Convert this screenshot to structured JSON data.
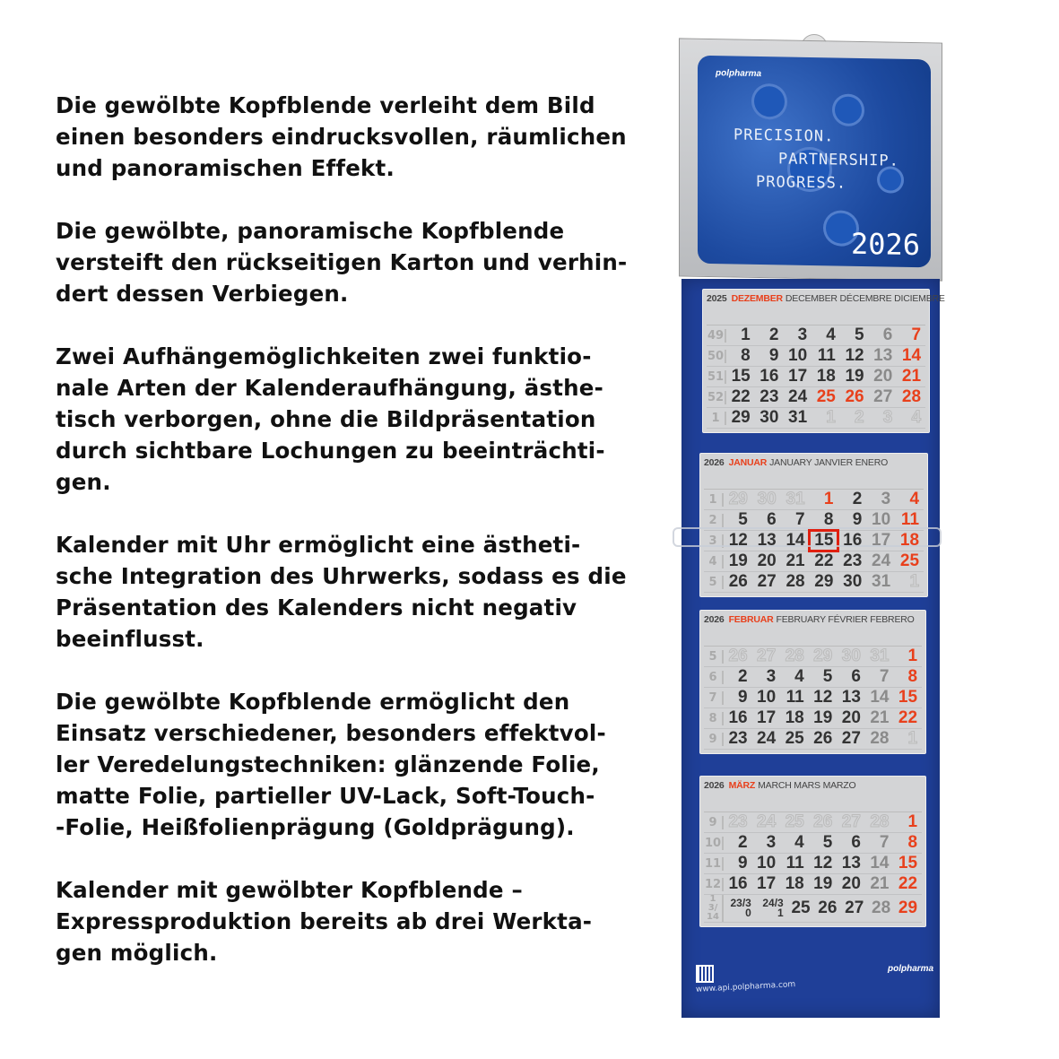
{
  "text": {
    "paragraphs": [
      "Die gewölbte Kopfblende verleiht dem Bild\neinen besonders eindrucksvollen, räumlichen\nund panoramischen Effekt.",
      "Die gewölbte, panoramische Kopfblende\nversteift den rückseitigen Karton und verhin-\ndert dessen Verbiegen.",
      "Zwei Aufhängemöglichkeiten  zwei funktio-\nnale Arten der Kalenderaufhängung, ästhe-\ntisch verborgen, ohne die Bildpräsentation\ndurch sichtbare Lochungen zu beeinträchti-\ngen.",
      "Kalender mit Uhr  ermöglicht eine ästheti-\nsche Integration des Uhrwerks, sodass es die\nPräsentation des Kalenders nicht negativ\nbeeinflusst.",
      "Die gewölbte Kopfblende ermöglicht den\nEinsatz verschiedener, besonders effektvol-\nler Veredelungstechniken: glänzende Folie,\nmatte Folie, partieller UV-Lack, Soft-Touch-\n-Folie, Heißfolienprägung (Goldprägung).",
      "Kalender mit gewölbter Kopfblende –\nExpressproduktion bereits ab drei Werkta-\ngen möglich."
    ]
  },
  "calendar": {
    "header": {
      "logo": "polpharma",
      "slogan": [
        "PRECISION.",
        "PARTNERSHIP.",
        "PROGRESS."
      ],
      "year": "2026"
    },
    "colors": {
      "accent": "#e8401c",
      "panel": "#1f3f98"
    },
    "months": [
      {
        "year": "2025",
        "name_de": "DEZEMBER",
        "names": "DECEMBER DÉCEMBRE DICIEMBRE",
        "rows": [
          [
            "49",
            [
              [
                "1",
                "w"
              ],
              [
                "2",
                "w"
              ],
              [
                "3",
                "w"
              ],
              [
                "4",
                "w"
              ],
              [
                "5",
                "w"
              ],
              [
                "6",
                "s"
              ],
              [
                "7",
                "h"
              ]
            ]
          ],
          [
            "50",
            [
              [
                "8",
                "w"
              ],
              [
                "9",
                "w"
              ],
              [
                "10",
                "w"
              ],
              [
                "11",
                "w"
              ],
              [
                "12",
                "w"
              ],
              [
                "13",
                "s"
              ],
              [
                "14",
                "h"
              ]
            ]
          ],
          [
            "51",
            [
              [
                "15",
                "w"
              ],
              [
                "16",
                "w"
              ],
              [
                "17",
                "w"
              ],
              [
                "18",
                "w"
              ],
              [
                "19",
                "w"
              ],
              [
                "20",
                "s"
              ],
              [
                "21",
                "h"
              ]
            ]
          ],
          [
            "52",
            [
              [
                "22",
                "w"
              ],
              [
                "23",
                "w"
              ],
              [
                "24",
                "w"
              ],
              [
                "25",
                "h"
              ],
              [
                "26",
                "h"
              ],
              [
                "27",
                "s"
              ],
              [
                "28",
                "h"
              ]
            ]
          ],
          [
            "1",
            [
              [
                "29",
                "w"
              ],
              [
                "30",
                "w"
              ],
              [
                "31",
                "w"
              ],
              [
                "1",
                "o"
              ],
              [
                "2",
                "o"
              ],
              [
                "3",
                "o"
              ],
              [
                "4",
                "o"
              ]
            ]
          ]
        ]
      },
      {
        "year": "2026",
        "name_de": "JANUAR",
        "names": "JANUARY JANVIER ENERO",
        "rows": [
          [
            "1",
            [
              [
                "29",
                "o"
              ],
              [
                "30",
                "o"
              ],
              [
                "31",
                "o"
              ],
              [
                "1",
                "h"
              ],
              [
                "2",
                "w"
              ],
              [
                "3",
                "s"
              ],
              [
                "4",
                "h"
              ]
            ]
          ],
          [
            "2",
            [
              [
                "5",
                "w"
              ],
              [
                "6",
                "w"
              ],
              [
                "7",
                "w"
              ],
              [
                "8",
                "w"
              ],
              [
                "9",
                "w"
              ],
              [
                "10",
                "s"
              ],
              [
                "11",
                "h"
              ]
            ]
          ],
          [
            "3",
            [
              [
                "12",
                "w"
              ],
              [
                "13",
                "w"
              ],
              [
                "14",
                "w"
              ],
              [
                "15",
                "hl"
              ],
              [
                "16",
                "w"
              ],
              [
                "17",
                "s"
              ],
              [
                "18",
                "h"
              ]
            ]
          ],
          [
            "4",
            [
              [
                "19",
                "w"
              ],
              [
                "20",
                "w"
              ],
              [
                "21",
                "w"
              ],
              [
                "22",
                "w"
              ],
              [
                "23",
                "w"
              ],
              [
                "24",
                "s"
              ],
              [
                "25",
                "h"
              ]
            ]
          ],
          [
            "5",
            [
              [
                "26",
                "w"
              ],
              [
                "27",
                "w"
              ],
              [
                "28",
                "w"
              ],
              [
                "29",
                "w"
              ],
              [
                "30",
                "w"
              ],
              [
                "31",
                "s"
              ],
              [
                "1",
                "o"
              ]
            ]
          ]
        ]
      },
      {
        "year": "2026",
        "name_de": "FEBRUAR",
        "names": "FEBRUARY FÉVRIER FEBRERO",
        "rows": [
          [
            "5",
            [
              [
                "26",
                "o"
              ],
              [
                "27",
                "o"
              ],
              [
                "28",
                "o"
              ],
              [
                "29",
                "o"
              ],
              [
                "30",
                "o"
              ],
              [
                "31",
                "o"
              ],
              [
                "1",
                "h"
              ]
            ]
          ],
          [
            "6",
            [
              [
                "2",
                "w"
              ],
              [
                "3",
                "w"
              ],
              [
                "4",
                "w"
              ],
              [
                "5",
                "w"
              ],
              [
                "6",
                "w"
              ],
              [
                "7",
                "s"
              ],
              [
                "8",
                "h"
              ]
            ]
          ],
          [
            "7",
            [
              [
                "9",
                "w"
              ],
              [
                "10",
                "w"
              ],
              [
                "11",
                "w"
              ],
              [
                "12",
                "w"
              ],
              [
                "13",
                "w"
              ],
              [
                "14",
                "s"
              ],
              [
                "15",
                "h"
              ]
            ]
          ],
          [
            "8",
            [
              [
                "16",
                "w"
              ],
              [
                "17",
                "w"
              ],
              [
                "18",
                "w"
              ],
              [
                "19",
                "w"
              ],
              [
                "20",
                "w"
              ],
              [
                "21",
                "s"
              ],
              [
                "22",
                "h"
              ]
            ]
          ],
          [
            "9",
            [
              [
                "23",
                "w"
              ],
              [
                "24",
                "w"
              ],
              [
                "25",
                "w"
              ],
              [
                "26",
                "w"
              ],
              [
                "27",
                "w"
              ],
              [
                "28",
                "s"
              ],
              [
                "1",
                "o"
              ]
            ]
          ]
        ]
      },
      {
        "year": "2026",
        "name_de": "MÄRZ",
        "names": "MARCH MARS MARZO",
        "rows": [
          [
            "9",
            [
              [
                "23",
                "o"
              ],
              [
                "24",
                "o"
              ],
              [
                "25",
                "o"
              ],
              [
                "26",
                "o"
              ],
              [
                "27",
                "o"
              ],
              [
                "28",
                "o"
              ],
              [
                "1",
                "h"
              ]
            ]
          ],
          [
            "10",
            [
              [
                "2",
                "w"
              ],
              [
                "3",
                "w"
              ],
              [
                "4",
                "w"
              ],
              [
                "5",
                "w"
              ],
              [
                "6",
                "w"
              ],
              [
                "7",
                "s"
              ],
              [
                "8",
                "h"
              ]
            ]
          ],
          [
            "11",
            [
              [
                "9",
                "w"
              ],
              [
                "10",
                "w"
              ],
              [
                "11",
                "w"
              ],
              [
                "12",
                "w"
              ],
              [
                "13",
                "w"
              ],
              [
                "14",
                "s"
              ],
              [
                "15",
                "h"
              ]
            ]
          ],
          [
            "12",
            [
              [
                "16",
                "w"
              ],
              [
                "17",
                "w"
              ],
              [
                "18",
                "w"
              ],
              [
                "19",
                "w"
              ],
              [
                "20",
                "w"
              ],
              [
                "21",
                "s"
              ],
              [
                "22",
                "h"
              ]
            ]
          ],
          [
            "13/14",
            [
              [
                "23/30",
                "w"
              ],
              [
                "24/31",
                "w"
              ],
              [
                "25",
                "w"
              ],
              [
                "26",
                "w"
              ],
              [
                "27",
                "w"
              ],
              [
                "28",
                "s"
              ],
              [
                "29",
                "h"
              ]
            ]
          ]
        ]
      }
    ],
    "footer": {
      "url": "www.api.polpharma.com",
      "logo": "polpharma",
      "qr": "qr-code-icon"
    }
  }
}
